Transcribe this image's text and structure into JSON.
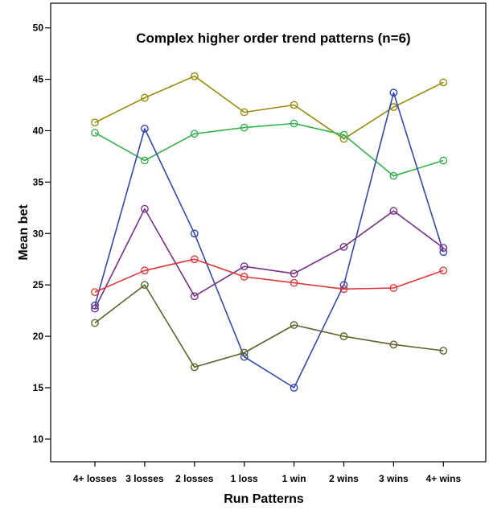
{
  "chart_data": {
    "type": "line",
    "title": "Complex higher order trend patterns (n=6)",
    "xlabel": "Run Patterns",
    "ylabel": "Mean bet",
    "categories": [
      "4+ losses",
      "3 losses",
      "2 losses",
      "1 loss",
      "1 win",
      "2 wins",
      "3 wins",
      "4+ wins"
    ],
    "yticks": [
      "10",
      "15",
      "20",
      "25",
      "30",
      "35",
      "40",
      "45",
      "50"
    ],
    "ylim": [
      7.8,
      52.4
    ],
    "grid": false,
    "legend": "none",
    "marker": "open-circle",
    "series": [
      {
        "color": "#9a8c0a",
        "values": [
          40.8,
          43.2,
          45.3,
          41.8,
          42.5,
          39.2,
          42.3,
          44.7
        ]
      },
      {
        "color": "#33b24c",
        "values": [
          39.8,
          37.1,
          39.7,
          40.3,
          40.7,
          39.6,
          35.6,
          37.1
        ]
      },
      {
        "color": "#3346b5",
        "values": [
          23.0,
          40.2,
          30.0,
          18.0,
          15.0,
          25.0,
          43.7,
          28.2
        ]
      },
      {
        "color": "#7a2f8c",
        "values": [
          22.7,
          32.4,
          23.9,
          26.8,
          26.1,
          28.7,
          32.2,
          28.6
        ]
      },
      {
        "color": "#e0383a",
        "values": [
          24.3,
          26.4,
          27.5,
          25.8,
          25.2,
          24.6,
          24.7,
          26.4
        ]
      },
      {
        "color": "#60632a",
        "values": [
          21.3,
          25.0,
          17.0,
          18.4,
          21.1,
          20.0,
          19.2,
          18.6
        ]
      }
    ]
  }
}
